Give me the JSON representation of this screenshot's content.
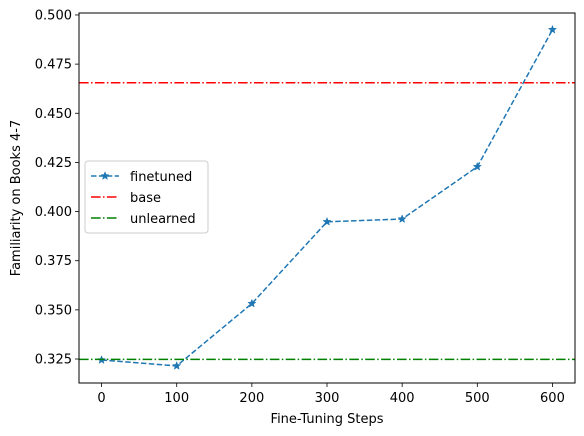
{
  "chart_data": {
    "type": "line",
    "xlabel": "Fine-Tuning Steps",
    "ylabel": "Familiarity on Books 4-7",
    "xlim": [
      -30,
      630
    ],
    "ylim": [
      0.3128,
      0.501
    ],
    "xticks": [
      0,
      100,
      200,
      300,
      400,
      500,
      600
    ],
    "yticks": [
      0.325,
      0.35,
      0.375,
      0.4,
      0.425,
      0.45,
      0.475,
      0.5
    ],
    "ytick_labels": [
      "0.325",
      "0.350",
      "0.375",
      "0.400",
      "0.425",
      "0.450",
      "0.475",
      "0.500"
    ],
    "grid": false,
    "legend_position": "center-left",
    "series": [
      {
        "name": "finetuned",
        "style": "dashed",
        "marker": "star",
        "color": "#1f77b4",
        "x": [
          0,
          100,
          200,
          300,
          400,
          500,
          600
        ],
        "y": [
          0.3245,
          0.3215,
          0.3532,
          0.3948,
          0.3962,
          0.4228,
          0.4925
        ]
      },
      {
        "name": "base",
        "style": "dashdot",
        "color": "#ff0000",
        "hline": 0.4655
      },
      {
        "name": "unlearned",
        "style": "dashdot",
        "color": "#008000",
        "hline": 0.3248
      }
    ]
  }
}
